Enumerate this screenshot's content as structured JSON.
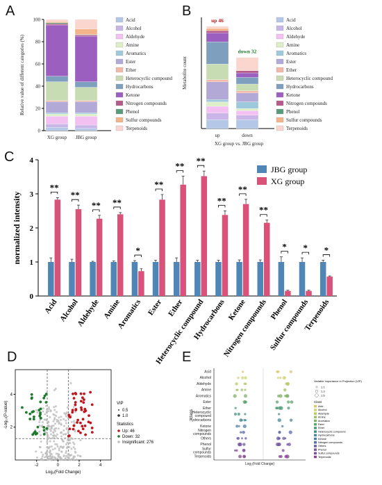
{
  "panels": {
    "A": "A",
    "B": "B",
    "C": "C",
    "D": "D",
    "E": "E"
  },
  "colors": {
    "Acid": "#b4c7e7",
    "Alcohol": "#c9b6e6",
    "Aldehyde": "#f3c1f1",
    "Amine": "#dcefc6",
    "Aromatics": "#9ec9dc",
    "Ester": "#b3a9d6",
    "Ether": "#f2b9a9",
    "Heterocyclic compound": "#c8dcb3",
    "Hydrocarbons": "#7f9fbf",
    "Ketone": "#9a5fbf",
    "Nitrogen compounds": "#b55a8a",
    "Phenol": "#5b9a78",
    "Sulfur compounds": "#f3b48a",
    "Terpenoids": "#fbd6cf",
    "jbg": "#4f86b5",
    "xg": "#d9527a",
    "up": "#c0171e",
    "down": "#1f7a2c",
    "insig": "#bdbdbd"
  },
  "chart_data": [
    {
      "type": "bar",
      "panel": "A",
      "stacked": true,
      "categories": [
        "XG group",
        "JBG group"
      ],
      "ylabel": "Relative value of different categories (%)",
      "ylim": [
        0,
        100
      ],
      "yticks": [
        "0",
        "20",
        "40",
        "60",
        "80",
        "100"
      ],
      "series": [
        {
          "name": "Acid",
          "values": [
            3,
            2
          ]
        },
        {
          "name": "Alcohol",
          "values": [
            3,
            3
          ]
        },
        {
          "name": "Aldehyde",
          "values": [
            7,
            8
          ]
        },
        {
          "name": "Amine",
          "values": [
            2,
            2
          ]
        },
        {
          "name": "Aromatics",
          "values": [
            1,
            1
          ]
        },
        {
          "name": "Ester",
          "values": [
            10,
            10
          ]
        },
        {
          "name": "Ether",
          "values": [
            1,
            1
          ]
        },
        {
          "name": "Heterocyclic compound",
          "values": [
            17,
            12
          ]
        },
        {
          "name": "Hydrocarbons",
          "values": [
            5,
            5
          ]
        },
        {
          "name": "Ketone",
          "values": [
            46,
            41
          ]
        },
        {
          "name": "Nitrogen compounds",
          "values": [
            1,
            1
          ]
        },
        {
          "name": "Phenol",
          "values": [
            1,
            0.5
          ]
        },
        {
          "name": "Sulfur compounds",
          "values": [
            1,
            5
          ]
        },
        {
          "name": "Terpenoids",
          "values": [
            2,
            8.5
          ]
        }
      ]
    },
    {
      "type": "bar",
      "panel": "B",
      "stacked": true,
      "categories": [
        "up",
        "down"
      ],
      "xlabel": "XG group vs. JBG group",
      "ylabel": "Metabolite count",
      "ylim": [
        0,
        50
      ],
      "annotations": [
        "up 46",
        "down 32"
      ],
      "series": [
        {
          "name": "Acid",
          "values": [
            4,
            4
          ]
        },
        {
          "name": "Alcohol",
          "values": [
            3,
            2
          ]
        },
        {
          "name": "Aldehyde",
          "values": [
            3,
            2
          ]
        },
        {
          "name": "Amine",
          "values": [
            2,
            1
          ]
        },
        {
          "name": "Aromatics",
          "values": [
            1,
            3
          ]
        },
        {
          "name": "Ester",
          "values": [
            8,
            4
          ]
        },
        {
          "name": "Ether",
          "values": [
            1,
            1
          ]
        },
        {
          "name": "Heterocyclic compound",
          "values": [
            7,
            3
          ]
        },
        {
          "name": "Hydrocarbons",
          "values": [
            10,
            3
          ]
        },
        {
          "name": "Ketone",
          "values": [
            4,
            2
          ]
        },
        {
          "name": "Nitrogen compounds",
          "values": [
            1,
            1
          ]
        },
        {
          "name": "Phenol",
          "values": [
            0,
            0
          ]
        },
        {
          "name": "Sulfur compounds",
          "values": [
            1,
            0
          ]
        },
        {
          "name": "Terpenoids",
          "values": [
            1,
            6
          ]
        }
      ]
    },
    {
      "type": "bar",
      "panel": "C",
      "categories": [
        "Acid",
        "Alcohol",
        "Aldehyde",
        "Amine",
        "Aromatics",
        "Ester",
        "Ether",
        "Heterocyclic compound",
        "Hydrocarbons",
        "Ketone",
        "Nitrogen compounds",
        "Phenol",
        "Sulfur compounds",
        "Terpenoids"
      ],
      "ylabel": "normalized intensity",
      "ylim": [
        0,
        4
      ],
      "yticks": [
        "0",
        "1",
        "2",
        "3",
        "4"
      ],
      "series": [
        {
          "name": "JBG group",
          "values": [
            1,
            1,
            1,
            1,
            1,
            1,
            1,
            1,
            1,
            1,
            1,
            1,
            1,
            1
          ],
          "errors": [
            0.12,
            0.08,
            0.02,
            0.03,
            0.04,
            0.05,
            0.12,
            0.05,
            0.05,
            0.06,
            0.06,
            0.15,
            0.12,
            0.05
          ]
        },
        {
          "name": "XG group",
          "values": [
            2.83,
            2.55,
            2.27,
            2.4,
            0.73,
            2.83,
            3.27,
            3.52,
            2.38,
            2.7,
            2.15,
            0.15,
            0.15,
            0.57
          ],
          "errors": [
            0.06,
            0.12,
            0.1,
            0.05,
            0.07,
            0.15,
            0.25,
            0.15,
            0.12,
            0.14,
            0.08,
            0.02,
            0.02,
            0.02
          ]
        }
      ],
      "significance": [
        "**",
        "**",
        "**",
        "**",
        "*",
        "**",
        "**",
        "**",
        "**",
        "**",
        "**",
        "*",
        "*",
        "*"
      ]
    },
    {
      "type": "scatter",
      "panel": "D",
      "xlabel": "Log₂(Fold Change)",
      "ylabel": "-Log₁₀(P-value)",
      "xlim": [
        -4,
        5
      ],
      "ylim": [
        0,
        5.5
      ],
      "xticks": [
        "-2",
        "0",
        "2",
        "4"
      ],
      "yticks": [
        "2",
        "4"
      ],
      "legend": {
        "vip_title": "VIP",
        "vip_items": [
          "0.5",
          "1.0"
        ],
        "stats_title": "Statistics",
        "stats_items": [
          "Up: 46",
          "Down: 32",
          "Insignificant: 276"
        ]
      }
    },
    {
      "type": "scatter",
      "panel": "E",
      "xlabel": "Log₂(Fold Change)",
      "ylabel": "class",
      "categories": [
        "Acid",
        "Alcohol",
        "Aldehyde",
        "Amine",
        "Aromatics",
        "Ester",
        "Ether",
        "Heterocyclic compound",
        "Hydrocarbons",
        "Ketone",
        "Nitrogen compounds",
        "Others",
        "Phenol",
        "Sulfur compounds",
        "Terpenoids"
      ],
      "legend": {
        "vip_title": "Variable Importance in Projection (VIP)",
        "vip_items": [
          "1.1",
          "1.3",
          "1.5"
        ],
        "class_title": "Class",
        "class_items": [
          "Acid",
          "Alcohol",
          "Aldehyde",
          "Amine",
          "Aromatics",
          "Ester",
          "Ether",
          "Heterocyclic compound",
          "Hydrocarbons",
          "Ketone",
          "Nitrogen compounds",
          "Others",
          "Phenol",
          "Sulfur compounds",
          "Terpenoids"
        ]
      }
    }
  ]
}
